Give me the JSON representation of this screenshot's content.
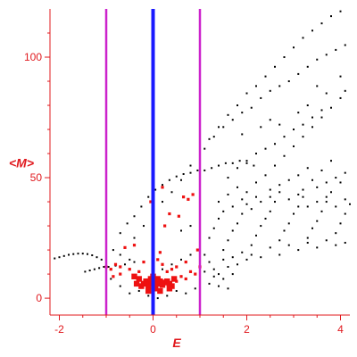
{
  "chart_data": {
    "type": "scatter",
    "title": "",
    "xlabel": "E",
    "ylabel": "<M>",
    "xlim": [
      -2.2,
      4.2
    ],
    "ylim": [
      -7,
      120
    ],
    "x_ticks": [
      -2,
      0,
      2,
      4
    ],
    "y_ticks": [
      0,
      50,
      100
    ],
    "grid": false,
    "colors": {
      "axis": "#e0191e",
      "tick_labels": "#e0191e",
      "black_points": "#000000",
      "red_points": "#ee1111",
      "center_line": "#1a1aff",
      "side_lines": "#cc22cc"
    },
    "vertical_lines": [
      {
        "name": "center-line",
        "x": 0,
        "color": "#1a1aff",
        "width": 4
      },
      {
        "name": "left-bound-line",
        "x": -1,
        "color": "#cc22cc",
        "width": 2.5
      },
      {
        "name": "right-bound-line",
        "x": 1,
        "color": "#cc22cc",
        "width": 2.5
      }
    ],
    "series": [
      {
        "values_desc": "black",
        "points": [
          [
            -2.1,
            16.5
          ],
          [
            -2.0,
            17
          ],
          [
            -1.9,
            17.5
          ],
          [
            -1.8,
            18
          ],
          [
            -1.7,
            18.3
          ],
          [
            -1.6,
            18.5
          ],
          [
            -1.5,
            18.5
          ],
          [
            -1.4,
            18.3
          ],
          [
            -1.3,
            17.8
          ],
          [
            -1.2,
            17
          ],
          [
            -1.1,
            16
          ],
          [
            -1.0,
            14.5
          ],
          [
            -0.95,
            13
          ],
          [
            -0.9,
            12
          ],
          [
            -1.45,
            11
          ],
          [
            -1.35,
            11.5
          ],
          [
            -1.25,
            12
          ],
          [
            -1.15,
            12.5
          ],
          [
            -1.05,
            13
          ],
          [
            -0.8,
            13.5
          ],
          [
            -0.6,
            14
          ],
          [
            -0.4,
            15
          ],
          [
            -0.85,
            20
          ],
          [
            -0.7,
            27
          ],
          [
            -0.55,
            31
          ],
          [
            -0.4,
            34
          ],
          [
            -0.25,
            38
          ],
          [
            -0.1,
            42
          ],
          [
            0.05,
            45
          ],
          [
            0.2,
            47
          ],
          [
            0.35,
            49
          ],
          [
            0.5,
            50.5
          ],
          [
            0.65,
            51.5
          ],
          [
            0.8,
            52
          ],
          [
            0.95,
            53
          ],
          [
            1.1,
            53
          ],
          [
            1.25,
            54
          ],
          [
            1.4,
            55
          ],
          [
            1.55,
            56
          ],
          [
            1.7,
            56
          ],
          [
            1.85,
            57
          ],
          [
            2.0,
            56
          ],
          [
            2.15,
            55
          ],
          [
            -0.4,
            25
          ],
          [
            -0.2,
            30
          ],
          [
            0.0,
            35
          ],
          [
            0.2,
            40
          ],
          [
            0.4,
            44
          ],
          [
            0.6,
            49
          ],
          [
            0.8,
            55
          ],
          [
            1.0,
            60
          ],
          [
            1.2,
            66
          ],
          [
            1.4,
            71
          ],
          [
            1.6,
            76
          ],
          [
            1.8,
            80
          ],
          [
            2.0,
            85
          ],
          [
            2.2,
            88
          ],
          [
            2.4,
            92
          ],
          [
            2.6,
            96
          ],
          [
            2.8,
            100
          ],
          [
            3.0,
            104
          ],
          [
            3.2,
            108
          ],
          [
            3.4,
            111
          ],
          [
            3.6,
            114
          ],
          [
            3.8,
            117
          ],
          [
            4.0,
            119
          ],
          [
            1.1,
            62
          ],
          [
            1.3,
            67
          ],
          [
            1.5,
            71
          ],
          [
            1.7,
            74
          ],
          [
            1.9,
            77
          ],
          [
            2.1,
            79
          ],
          [
            2.3,
            83
          ],
          [
            2.5,
            86
          ],
          [
            2.7,
            88
          ],
          [
            2.9,
            90
          ],
          [
            3.1,
            93
          ],
          [
            3.3,
            96
          ],
          [
            3.5,
            99
          ],
          [
            3.7,
            101
          ],
          [
            3.9,
            103
          ],
          [
            4.1,
            105
          ],
          [
            2.2,
            48
          ],
          [
            2.4,
            51
          ],
          [
            2.6,
            55
          ],
          [
            2.8,
            59
          ],
          [
            3.0,
            63
          ],
          [
            3.2,
            67
          ],
          [
            3.4,
            71
          ],
          [
            3.6,
            75
          ],
          [
            3.8,
            79
          ],
          [
            4.0,
            83
          ],
          [
            4.1,
            86
          ],
          [
            1.6,
            50
          ],
          [
            1.8,
            54
          ],
          [
            2.0,
            57
          ],
          [
            2.2,
            60
          ],
          [
            2.4,
            62
          ],
          [
            2.6,
            64
          ],
          [
            2.8,
            67
          ],
          [
            3.0,
            70
          ],
          [
            3.2,
            72
          ],
          [
            3.4,
            75
          ],
          [
            3.6,
            78
          ],
          [
            1.9,
            68
          ],
          [
            2.3,
            71
          ],
          [
            2.7,
            72
          ],
          [
            3.3,
            80
          ],
          [
            3.7,
            85
          ],
          [
            4.0,
            92
          ],
          [
            3.5,
            88
          ],
          [
            3.1,
            77
          ],
          [
            2.5,
            74
          ],
          [
            0.6,
            28
          ],
          [
            0.8,
            30
          ],
          [
            1.0,
            22
          ],
          [
            1.2,
            25
          ],
          [
            1.3,
            29
          ],
          [
            1.4,
            33
          ],
          [
            1.5,
            20
          ],
          [
            1.6,
            24
          ],
          [
            1.7,
            28
          ],
          [
            1.8,
            31
          ],
          [
            1.9,
            35
          ],
          [
            2.0,
            39
          ],
          [
            2.1,
            22
          ],
          [
            2.2,
            26
          ],
          [
            2.3,
            30
          ],
          [
            2.4,
            33
          ],
          [
            2.5,
            36
          ],
          [
            2.6,
            40
          ],
          [
            2.7,
            24
          ],
          [
            2.8,
            28
          ],
          [
            2.9,
            31
          ],
          [
            3.0,
            35
          ],
          [
            3.1,
            38
          ],
          [
            3.2,
            42
          ],
          [
            3.3,
            25
          ],
          [
            3.4,
            29
          ],
          [
            3.5,
            32
          ],
          [
            3.6,
            36
          ],
          [
            3.7,
            40
          ],
          [
            3.8,
            44
          ],
          [
            3.9,
            27
          ],
          [
            4.0,
            31
          ],
          [
            4.1,
            35
          ],
          [
            4.2,
            39
          ],
          [
            1.1,
            18
          ],
          [
            1.2,
            15
          ],
          [
            1.3,
            12
          ],
          [
            1.4,
            10
          ],
          [
            1.5,
            16
          ],
          [
            1.6,
            13
          ],
          [
            1.7,
            17
          ],
          [
            1.8,
            14
          ],
          [
            1.9,
            19
          ],
          [
            2.0,
            16
          ],
          [
            2.1,
            18
          ],
          [
            2.3,
            17
          ],
          [
            2.5,
            21
          ],
          [
            2.7,
            18
          ],
          [
            2.9,
            22
          ],
          [
            3.1,
            20
          ],
          [
            3.3,
            23
          ],
          [
            3.5,
            21
          ],
          [
            3.7,
            24
          ],
          [
            3.9,
            22
          ],
          [
            4.1,
            23
          ],
          [
            1.0,
            8
          ],
          [
            1.2,
            6
          ],
          [
            1.4,
            5
          ],
          [
            1.6,
            4
          ],
          [
            1.1,
            11
          ],
          [
            1.3,
            9
          ],
          [
            1.5,
            8
          ],
          [
            1.7,
            10
          ],
          [
            0.9,
            4
          ],
          [
            0.7,
            2
          ],
          [
            0.5,
            3
          ],
          [
            0.3,
            1
          ],
          [
            0.1,
            0
          ],
          [
            -0.1,
            1
          ],
          [
            -0.3,
            3
          ],
          [
            -0.5,
            2
          ],
          [
            -0.7,
            5
          ],
          [
            -0.9,
            8
          ],
          [
            0.2,
            12
          ],
          [
            0.4,
            14
          ],
          [
            0.6,
            16
          ],
          [
            0.8,
            18
          ],
          [
            1.0,
            19
          ],
          [
            -0.2,
            15
          ],
          [
            -0.5,
            16
          ],
          [
            -0.7,
            18
          ],
          [
            2.5,
            45
          ],
          [
            2.7,
            47
          ],
          [
            2.9,
            49
          ],
          [
            3.1,
            51
          ],
          [
            3.3,
            54
          ],
          [
            3.5,
            46
          ],
          [
            3.7,
            48
          ],
          [
            3.9,
            50
          ],
          [
            4.1,
            52
          ],
          [
            3.2,
            45
          ],
          [
            3.4,
            49
          ],
          [
            3.6,
            53
          ],
          [
            3.8,
            57
          ],
          [
            4.0,
            48
          ],
          [
            2.1,
            37
          ],
          [
            2.3,
            40
          ],
          [
            2.5,
            42
          ],
          [
            2.7,
            44
          ],
          [
            2.9,
            41
          ],
          [
            3.1,
            43
          ],
          [
            3.3,
            38
          ],
          [
            3.5,
            40
          ],
          [
            3.7,
            42
          ],
          [
            3.9,
            38
          ],
          [
            4.1,
            41
          ],
          [
            1.4,
            40
          ],
          [
            1.6,
            43
          ],
          [
            1.8,
            46
          ],
          [
            2.0,
            44
          ],
          [
            2.2,
            42
          ],
          [
            1.5,
            36
          ],
          [
            1.7,
            38
          ],
          [
            1.9,
            41
          ]
        ]
      },
      {
        "values_desc": "red",
        "points": [
          [
            0.05,
            5
          ],
          [
            -0.05,
            6
          ],
          [
            0.0,
            6.5
          ],
          [
            -0.1,
            5
          ],
          [
            0.1,
            6
          ],
          [
            0.15,
            7
          ],
          [
            -0.15,
            7
          ],
          [
            0.2,
            5.5
          ],
          [
            -0.2,
            6
          ],
          [
            0.25,
            6.5
          ],
          [
            -0.25,
            5
          ],
          [
            0.3,
            7
          ],
          [
            0.35,
            6
          ],
          [
            -0.3,
            8
          ],
          [
            0.4,
            5
          ],
          [
            0.45,
            8
          ],
          [
            -0.35,
            6
          ],
          [
            -0.4,
            9
          ],
          [
            0.5,
            7
          ],
          [
            0.1,
            8
          ],
          [
            0.0,
            9
          ],
          [
            -0.05,
            8
          ],
          [
            0.05,
            4
          ],
          [
            -0.1,
            3
          ],
          [
            0.15,
            3
          ],
          [
            0.1,
            16
          ],
          [
            0.3,
            11
          ],
          [
            0.5,
            13
          ],
          [
            0.7,
            15
          ],
          [
            0.9,
            10
          ],
          [
            -0.5,
            12
          ],
          [
            -0.7,
            10
          ],
          [
            -0.9,
            12
          ],
          [
            -0.6,
            21
          ],
          [
            -0.8,
            14
          ],
          [
            -0.2,
            15
          ],
          [
            0.2,
            14
          ],
          [
            0.4,
            12
          ],
          [
            0.6,
            9
          ],
          [
            0.8,
            11
          ],
          [
            1.0,
            13
          ],
          [
            -0.3,
            11
          ],
          [
            0.25,
            30
          ],
          [
            0.35,
            35
          ],
          [
            0.55,
            34
          ],
          [
            0.65,
            42
          ],
          [
            0.75,
            41
          ],
          [
            0.85,
            43
          ],
          [
            0.2,
            46
          ],
          [
            -0.05,
            40
          ],
          [
            -0.4,
            22
          ],
          [
            0.95,
            20
          ],
          [
            0.15,
            19
          ],
          [
            -0.7,
            13
          ],
          [
            -1.0,
            13
          ],
          [
            -0.85,
            9
          ],
          [
            0.7,
            8
          ],
          [
            0.35,
            4
          ]
        ]
      }
    ]
  }
}
